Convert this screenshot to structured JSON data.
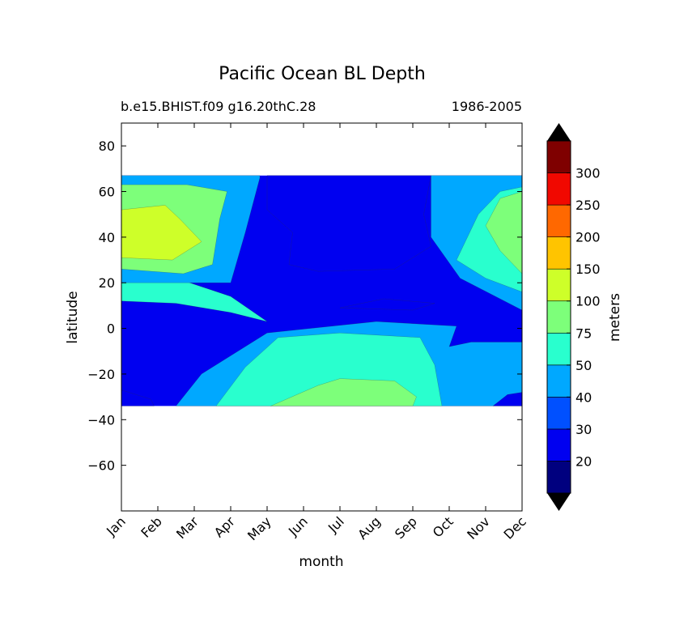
{
  "chart_data": {
    "type": "heatmap",
    "title": "Pacific Ocean BL Depth",
    "subtitle_left": "b.e15.BHIST.f09 g16.20thC.28",
    "subtitle_right": "1986-2005",
    "xlabel": "month",
    "ylabel": "latitude",
    "x_categories": [
      "Jan",
      "Feb",
      "Mar",
      "Apr",
      "May",
      "Jun",
      "Jul",
      "Aug",
      "Sep",
      "Oct",
      "Nov",
      "Dec"
    ],
    "xlim": [
      1,
      12
    ],
    "ylim": [
      -80,
      90
    ],
    "y_ticks": [
      80,
      60,
      40,
      20,
      0,
      -20,
      -40,
      -60
    ],
    "y_tick_labels": [
      "80",
      "60",
      "40",
      "20",
      "0",
      "−20",
      "−40",
      "−60"
    ],
    "data_lat_range": [
      -34,
      67
    ],
    "colorbar": {
      "label": "meters",
      "levels": [
        10,
        20,
        30,
        40,
        50,
        75,
        100,
        150,
        200,
        250,
        300,
        350
      ],
      "tick_values": [
        20,
        30,
        40,
        50,
        75,
        100,
        150,
        200,
        250,
        300
      ],
      "tick_labels": [
        "20",
        "30",
        "40",
        "50",
        "75",
        "100",
        "150",
        "200",
        "250",
        "300"
      ],
      "colors": [
        "#00007f",
        "#0000f0",
        "#0050ff",
        "#00a8ff",
        "#29ffce",
        "#7dff7a",
        "#ceff29",
        "#ffc400",
        "#ff6800",
        "#f10800",
        "#7f0000"
      ],
      "extend": "both",
      "under_color": "#000000",
      "over_color": "#000000"
    },
    "contour_regions": [
      {
        "level_band": 3,
        "description": "north-winter",
        "points": [
          [
            1,
            67
          ],
          [
            1,
            20
          ],
          [
            4,
            20
          ],
          [
            4.4,
            42
          ],
          [
            4.8,
            66
          ],
          [
            4.8,
            67
          ]
        ]
      },
      {
        "level_band": 3,
        "description": "north-winter-end",
        "points": [
          [
            9.5,
            67
          ],
          [
            9.5,
            40
          ],
          [
            10.3,
            22
          ],
          [
            12,
            8
          ],
          [
            12,
            67
          ]
        ]
      },
      {
        "level_band": 4,
        "description": "subtropic-north",
        "points": [
          [
            1,
            12
          ],
          [
            2.5,
            11
          ],
          [
            4,
            7
          ],
          [
            5,
            3
          ],
          [
            4,
            14
          ],
          [
            2.5,
            22
          ],
          [
            1,
            25
          ]
        ]
      },
      {
        "level_band": 4,
        "description": "subtropic-north-end",
        "points": [
          [
            12,
            16
          ],
          [
            11,
            22
          ],
          [
            10.2,
            30
          ],
          [
            10.8,
            50
          ],
          [
            11.4,
            60
          ],
          [
            12,
            62
          ]
        ]
      },
      {
        "level_band": 5,
        "description": "winter-core",
        "points": [
          [
            1,
            63
          ],
          [
            1,
            26
          ],
          [
            2.7,
            24
          ],
          [
            3.5,
            28
          ],
          [
            3.7,
            48
          ],
          [
            3.9,
            60
          ],
          [
            2.8,
            63
          ]
        ]
      },
      {
        "level_band": 5,
        "description": "winter-core-end",
        "points": [
          [
            12,
            60
          ],
          [
            11.4,
            57
          ],
          [
            11,
            45
          ],
          [
            11.4,
            34
          ],
          [
            12,
            24
          ]
        ]
      },
      {
        "level_band": 6,
        "description": "winter-max",
        "points": [
          [
            1,
            52
          ],
          [
            1,
            31
          ],
          [
            2.4,
            30
          ],
          [
            3.2,
            38
          ],
          [
            2.6,
            48
          ],
          [
            2.2,
            54
          ]
        ]
      },
      {
        "level_band": 4,
        "description": "south-winter",
        "points": [
          [
            3.6,
            -34
          ],
          [
            4.4,
            -17
          ],
          [
            5.3,
            -4
          ],
          [
            7,
            -2
          ],
          [
            9.2,
            -4
          ],
          [
            9.6,
            -16
          ],
          [
            9.8,
            -34
          ]
        ]
      },
      {
        "level_band": 5,
        "description": "south-winter-core",
        "points": [
          [
            5.1,
            -34
          ],
          [
            6.4,
            -25
          ],
          [
            7,
            -22
          ],
          [
            8.5,
            -23
          ],
          [
            9.1,
            -30
          ],
          [
            9,
            -34
          ]
        ]
      },
      {
        "level_band": 3,
        "description": "south-mid",
        "points": [
          [
            2.5,
            -34
          ],
          [
            3.2,
            -20
          ],
          [
            5,
            -2
          ],
          [
            8,
            3
          ],
          [
            10.2,
            1
          ],
          [
            10,
            -8
          ],
          [
            10.6,
            -6
          ],
          [
            12,
            -6
          ],
          [
            12,
            -34
          ]
        ]
      },
      {
        "level_band": 1,
        "description": "summer-north",
        "points": [
          [
            5,
            67
          ],
          [
            5,
            52
          ],
          [
            5.7,
            42
          ],
          [
            5.6,
            28
          ],
          [
            6.4,
            25
          ],
          [
            8.5,
            26
          ],
          [
            9.5,
            36
          ],
          [
            9.3,
            50
          ],
          [
            9.5,
            67
          ]
        ]
      },
      {
        "level_band": 1,
        "description": "equator-bands",
        "points": [
          [
            7,
            9
          ],
          [
            8.2,
            13
          ],
          [
            9.6,
            11
          ],
          [
            9,
            8
          ]
        ]
      },
      {
        "level_band": 1,
        "description": "south-corner-start",
        "points": [
          [
            1,
            -34
          ],
          [
            1,
            -27
          ],
          [
            1.8,
            -31
          ],
          [
            1.9,
            -34
          ]
        ]
      },
      {
        "level_band": 1,
        "description": "south-corner-end",
        "points": [
          [
            11.2,
            -34
          ],
          [
            11.6,
            -29
          ],
          [
            12,
            -28
          ],
          [
            12,
            -34
          ]
        ]
      }
    ]
  }
}
